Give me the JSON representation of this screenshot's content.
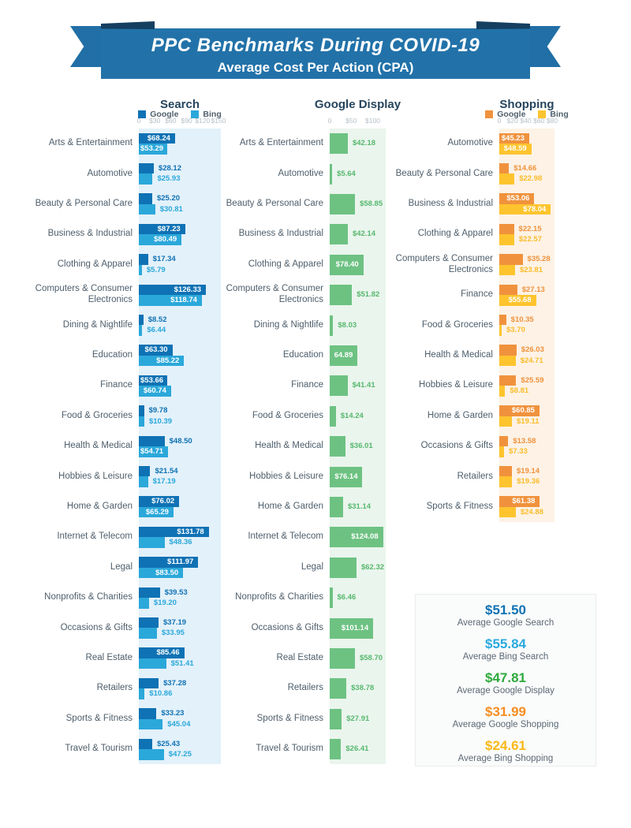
{
  "banner": {
    "title": "PPC Benchmarks During COVID-19",
    "subtitle": "Average Cost Per Action (CPA)"
  },
  "chart_data": [
    {
      "type": "bar",
      "orientation": "horizontal",
      "title": "Search",
      "legend": [
        {
          "name": "Google",
          "color": "#0f72b4"
        },
        {
          "name": "Bing",
          "color": "#2ba8da"
        }
      ],
      "axis": {
        "tick_labels": [
          "0",
          "$30",
          "$60",
          "$90",
          "$120",
          "$150"
        ],
        "tick_values": [
          0,
          30,
          60,
          90,
          120,
          150
        ],
        "max": 150
      },
      "plot_bg": "#e3f1fa",
      "categories": [
        "Arts & Entertainment",
        "Automotive",
        "Beauty & Personal Care",
        "Business & Industrial",
        "Clothing & Apparel",
        "Computers & Consumer Electronics",
        "Dining & Nightlife",
        "Education",
        "Finance",
        "Food & Groceries",
        "Health & Medical",
        "Hobbies & Leisure",
        "Home & Garden",
        "Internet & Telecom",
        "Legal",
        "Nonprofits & Charities",
        "Occasions & Gifts",
        "Real Estate",
        "Retailers",
        "Sports & Fitness",
        "Travel & Tourism"
      ],
      "series": [
        {
          "name": "Google",
          "color": "#0f72b4",
          "text_color": "#0f72b4",
          "values": [
            68.24,
            28.12,
            25.2,
            87.23,
            17.34,
            126.33,
            8.52,
            63.3,
            53.66,
            9.78,
            48.5,
            21.54,
            76.02,
            131.78,
            111.97,
            39.53,
            37.19,
            85.46,
            37.28,
            33.23,
            25.43
          ],
          "labels": [
            "$68.24",
            "$28.12",
            "$25.20",
            "$87.23",
            "$17.34",
            "$126.33",
            "$8.52",
            "$63.30",
            "$53.66",
            "$9.78",
            "$48.50",
            "$21.54",
            "$76.02",
            "$131.78",
            "$111.97",
            "$39.53",
            "$37.19",
            "$85.46",
            "$37.28",
            "$33.23",
            "$25.43"
          ]
        },
        {
          "name": "Bing",
          "color": "#2ba8da",
          "text_color": "#2ba8da",
          "values": [
            53.29,
            25.93,
            30.81,
            80.49,
            5.79,
            118.74,
            6.44,
            85.22,
            60.74,
            10.39,
            54.71,
            17.19,
            65.29,
            48.36,
            83.5,
            19.2,
            33.95,
            51.41,
            10.86,
            45.04,
            47.25
          ],
          "labels": [
            "$53.29",
            "$25.93",
            "$30.81",
            "$80.49",
            "$5.79",
            "$118.74",
            "$6.44",
            "$85.22",
            "$60.74",
            "$10.39",
            "$54.71",
            "$17.19",
            "$65.29",
            "$48.36",
            "$83.50",
            "$19.20",
            "$33.95",
            "$51.41",
            "$10.86",
            "$45.04",
            "$47.25"
          ]
        }
      ]
    },
    {
      "type": "bar",
      "orientation": "horizontal",
      "title": "Google Display",
      "legend": [],
      "axis": {
        "tick_labels": [
          "0",
          "$50",
          "$100"
        ],
        "tick_values": [
          0,
          50,
          100
        ],
        "max": 100
      },
      "plot_bg": "#eaf5ed",
      "categories": [
        "Arts & Entertainment",
        "Automotive",
        "Beauty & Personal Care",
        "Business & Industrial",
        "Clothing & Apparel",
        "Computers & Consumer Electronics",
        "Dining & Nightlife",
        "Education",
        "Finance",
        "Food & Groceries",
        "Health & Medical",
        "Hobbies & Leisure",
        "Home & Garden",
        "Internet & Telecom",
        "Legal",
        "Nonprofits & Charities",
        "Occasions & Gifts",
        "Real Estate",
        "Retailers",
        "Sports & Fitness",
        "Travel & Tourism"
      ],
      "series": [
        {
          "name": "Google Display",
          "color": "#6dc282",
          "text_color": "#57b86e",
          "values": [
            42.18,
            5.64,
            58.85,
            42.14,
            78.4,
            51.82,
            8.03,
            64.89,
            41.41,
            14.24,
            36.01,
            76.14,
            31.14,
            124.08,
            62.32,
            6.46,
            101.14,
            58.7,
            38.78,
            27.91,
            26.41
          ],
          "labels": [
            "$42.18",
            "$5.64",
            "$58.85",
            "$42.14",
            "$78.40",
            "$51.82",
            "$8.03",
            "64.89",
            "$41.41",
            "$14.24",
            "$36.01",
            "$76.14",
            "$31.14",
            "$124.08",
            "$62.32",
            "$6.46",
            "$101.14",
            "$58.70",
            "$38.78",
            "$27.91",
            "$26.41"
          ]
        }
      ]
    },
    {
      "type": "bar",
      "orientation": "horizontal",
      "title": "Shopping",
      "legend": [
        {
          "name": "Google",
          "color": "#f0923d"
        },
        {
          "name": "Bing",
          "color": "#fec42e"
        }
      ],
      "axis": {
        "tick_labels": [
          "0",
          "$20",
          "$40",
          "$60",
          "$80"
        ],
        "tick_values": [
          0,
          20,
          40,
          60,
          80
        ],
        "max": 80
      },
      "plot_bg": "#fdf2e5",
      "categories": [
        "Automotive",
        "Beauty & Personal Care",
        "Business & Industrial",
        "Clothing & Apparel",
        "Computers & Consumer Electronics",
        "Finance",
        "Food & Groceries",
        "Health & Medical",
        "Hobbies & Leisure",
        "Home & Garden",
        "Occasions & Gifts",
        "Retailers",
        "Sports & Fitness"
      ],
      "series": [
        {
          "name": "Google",
          "color": "#f0923d",
          "text_color": "#f0923d",
          "values": [
            45.23,
            14.66,
            53.06,
            22.15,
            35.28,
            27.13,
            10.35,
            26.03,
            25.59,
            60.85,
            13.58,
            19.14,
            61.38
          ],
          "labels": [
            "$45.23",
            "$14.66",
            "$53.06",
            "$22.15",
            "$35.28",
            "$27.13",
            "$10.35",
            "$26.03",
            "$25.59",
            "$60.85",
            "$13.58",
            "$19.14",
            "$61.38"
          ]
        },
        {
          "name": "Bing",
          "color": "#fec42e",
          "text_color": "#fbbc2a",
          "values": [
            48.59,
            22.98,
            78.04,
            22.57,
            23.81,
            55.68,
            3.7,
            24.71,
            8.81,
            19.11,
            7.33,
            19.36,
            24.88
          ],
          "labels": [
            "$48.59",
            "$22.98",
            "$78.04",
            "$22.57",
            "$23.81",
            "$55.68",
            "$3.70",
            "$24.71",
            "$8.81",
            "$19.11",
            "$7.33",
            "$19.36",
            "$24.88"
          ]
        }
      ]
    }
  ],
  "summary": {
    "items": [
      {
        "value": "$51.50",
        "label": "Average Google Search",
        "color": "#0f72b4"
      },
      {
        "value": "$55.84",
        "label": "Average Bing Search",
        "color": "#2aa9df"
      },
      {
        "value": "$47.81",
        "label": "Average Google Display",
        "color": "#2ea93c"
      },
      {
        "value": "$31.99",
        "label": "Average Google Shopping",
        "color": "#f68e20"
      },
      {
        "value": "$24.61",
        "label": "Average Bing Shopping",
        "color": "#fbb817"
      }
    ]
  }
}
